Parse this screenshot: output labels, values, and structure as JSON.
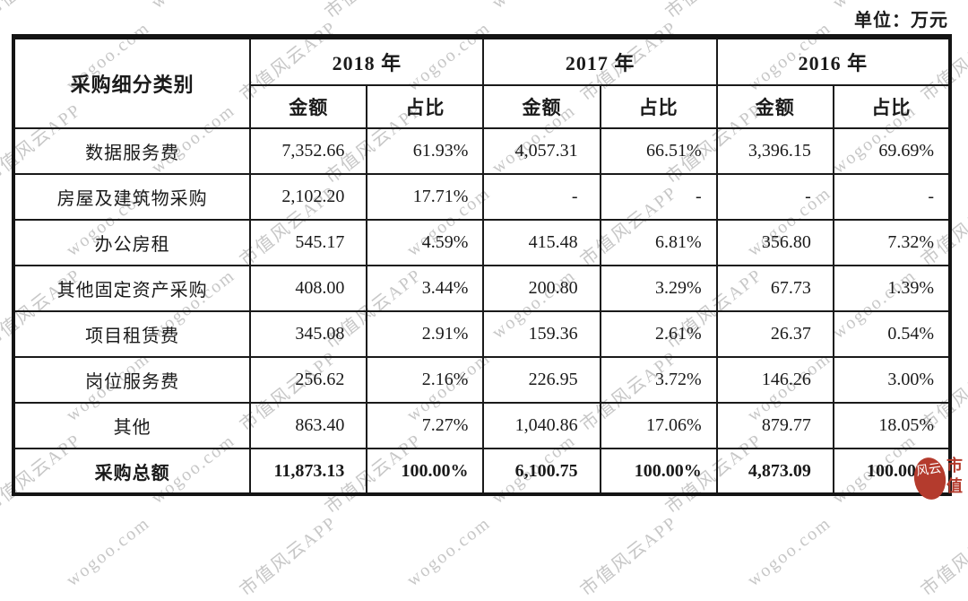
{
  "unit_label": "单位：万元",
  "watermark": {
    "texts": [
      "市值风云APP",
      "wogoo.com"
    ]
  },
  "logo": {
    "circle_chars": "风云",
    "side_chars": "市值"
  },
  "table": {
    "category_header": "采购细分类别",
    "year_groups": [
      {
        "year": "2018 年",
        "amount_label": "金额",
        "ratio_label": "占比"
      },
      {
        "year": "2017 年",
        "amount_label": "金额",
        "ratio_label": "占比"
      },
      {
        "year": "2016 年",
        "amount_label": "金额",
        "ratio_label": "占比"
      }
    ],
    "rows": [
      {
        "category": "数据服务费",
        "bold": false,
        "cells": [
          "7,352.66",
          "61.93%",
          "4,057.31",
          "66.51%",
          "3,396.15",
          "69.69%"
        ]
      },
      {
        "category": "房屋及建筑物采购",
        "bold": false,
        "cells": [
          "2,102.20",
          "17.71%",
          "-",
          "-",
          "-",
          "-"
        ]
      },
      {
        "category": "办公房租",
        "bold": false,
        "cells": [
          "545.17",
          "4.59%",
          "415.48",
          "6.81%",
          "356.80",
          "7.32%"
        ]
      },
      {
        "category": "其他固定资产采购",
        "bold": false,
        "cells": [
          "408.00",
          "3.44%",
          "200.80",
          "3.29%",
          "67.73",
          "1.39%"
        ]
      },
      {
        "category": "项目租赁费",
        "bold": false,
        "cells": [
          "345.08",
          "2.91%",
          "159.36",
          "2.61%",
          "26.37",
          "0.54%"
        ]
      },
      {
        "category": "岗位服务费",
        "bold": false,
        "cells": [
          "256.62",
          "2.16%",
          "226.95",
          "3.72%",
          "146.26",
          "3.00%"
        ]
      },
      {
        "category": "其他",
        "bold": false,
        "cells": [
          "863.40",
          "7.27%",
          "1,040.86",
          "17.06%",
          "879.77",
          "18.05%"
        ]
      },
      {
        "category": "采购总额",
        "bold": true,
        "cells": [
          "11,873.13",
          "100.00%",
          "6,100.75",
          "100.00%",
          "4,873.09",
          "100.00%"
        ]
      }
    ]
  }
}
